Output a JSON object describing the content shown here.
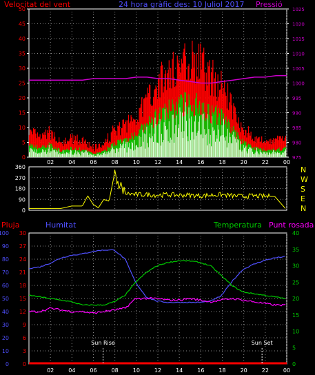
{
  "header": {
    "left_label": "Velocitat del vent",
    "center_label": "24 hora gràfic des: 10 Juliol 2017",
    "right_label": "Pressió"
  },
  "colors": {
    "wind": "#ff0000",
    "gust": "#ff0000",
    "wind_avg": "#00cc00",
    "wind_light": "#d8ffd8",
    "pressure": "#cc00cc",
    "direction": "#ffff00",
    "humidity": "#5050ff",
    "temperature": "#00cc00",
    "dewpoint": "#ff00ff",
    "rain": "#ff0000",
    "axis_left": "#ff0000",
    "axis_right": "#cc00cc",
    "grid": "#888888"
  },
  "x_tick_labels": [
    "02",
    "04",
    "06",
    "08",
    "10",
    "12",
    "14",
    "16",
    "18",
    "20",
    "22",
    "00"
  ],
  "chart_data": [
    {
      "type": "area",
      "id": "wind",
      "ylim_left": [
        0,
        50
      ],
      "yticks_left": [
        0,
        5,
        10,
        15,
        20,
        25,
        30,
        35,
        40,
        45,
        50
      ],
      "ylim_right": [
        975,
        1025
      ],
      "yticks_right": [
        975,
        980,
        985,
        990,
        995,
        1000,
        1005,
        1010,
        1015,
        1020,
        1025
      ],
      "x_hours": [
        0,
        1,
        2,
        3,
        4,
        5,
        6,
        7,
        8,
        9,
        10,
        11,
        12,
        13,
        14,
        15,
        16,
        17,
        18,
        19,
        20,
        21,
        22,
        23,
        24
      ],
      "series": [
        {
          "name": "Velocitat del vent",
          "values": [
            7,
            5,
            7,
            3,
            5,
            4,
            2,
            3,
            8,
            9,
            12,
            17,
            22,
            25,
            28,
            30,
            28,
            24,
            22,
            15,
            8,
            5,
            4,
            4,
            5
          ]
        },
        {
          "name": "Pressió",
          "values": [
            1001,
            1001,
            1001,
            1001,
            1001,
            1001,
            1001.5,
            1001.5,
            1001.5,
            1001.5,
            1002,
            1002,
            1001.5,
            1001.5,
            1001,
            1000.5,
            1000,
            1000,
            1000.5,
            1001,
            1001.5,
            1002,
            1002,
            1002.5,
            1002.5
          ]
        }
      ]
    },
    {
      "type": "scatter",
      "id": "direction",
      "ylim": [
        0,
        360
      ],
      "yticks": [
        0,
        90,
        180,
        270,
        360
      ],
      "right_labels": [
        "N",
        "W",
        "S",
        "E",
        "N"
      ],
      "x_hours": [
        0,
        1,
        2,
        3,
        4,
        5,
        5.5,
        6,
        6.5,
        7,
        7.5,
        8,
        8.5,
        9,
        10,
        11,
        12,
        13,
        14,
        15,
        16,
        17,
        18,
        19,
        20,
        21,
        22,
        23,
        24
      ],
      "values": [
        15,
        15,
        15,
        15,
        35,
        35,
        120,
        50,
        20,
        90,
        75,
        300,
        200,
        140,
        130,
        130,
        125,
        130,
        125,
        125,
        120,
        125,
        130,
        120,
        115,
        120,
        115,
        115,
        15
      ]
    },
    {
      "type": "line",
      "id": "climate",
      "left_axis_pluja": [
        0,
        3,
        6,
        9,
        12,
        15,
        18,
        21,
        24,
        27,
        30
      ],
      "left_axis_humitat": [
        0,
        10,
        20,
        30,
        40,
        50,
        60,
        70,
        80,
        90,
        100
      ],
      "right_axis_temp": [
        0,
        5,
        10,
        15,
        20,
        25,
        30,
        35,
        40
      ],
      "labels": {
        "rain": "Pluja",
        "humidity": "Humitat",
        "temperature": "Temperatura",
        "dewpoint": "Punt rosada",
        "sunrise": "Sun Rise",
        "sunset": "Sun Set"
      },
      "x_hours": [
        0,
        1,
        2,
        3,
        4,
        5,
        6,
        7,
        8,
        9,
        10,
        11,
        12,
        13,
        14,
        15,
        16,
        17,
        18,
        19,
        20,
        21,
        22,
        23,
        24
      ],
      "series": [
        {
          "name": "Humitat",
          "values": [
            73,
            74,
            77,
            81,
            83,
            84,
            86,
            87,
            87,
            80,
            62,
            51,
            48,
            47,
            47,
            47,
            47,
            48,
            52,
            63,
            72,
            76,
            79,
            81,
            82
          ]
        },
        {
          "name": "Temperatura",
          "values": [
            21,
            20.5,
            20,
            19.5,
            19,
            18,
            18,
            18,
            19,
            21,
            25,
            28,
            30,
            31,
            31.5,
            31.5,
            31,
            30,
            27,
            24,
            22,
            21.5,
            21,
            20.5,
            20
          ]
        },
        {
          "name": "Punt rosada",
          "values": [
            16,
            16,
            17,
            16.5,
            16,
            16,
            15.5,
            16,
            16.5,
            17,
            20,
            20,
            20,
            19.5,
            19.5,
            20,
            19.5,
            19,
            19.5,
            20,
            19.5,
            19,
            18.5,
            18,
            18
          ]
        },
        {
          "name": "Pluja",
          "values": [
            0,
            0,
            0,
            0,
            0,
            0,
            0,
            0,
            0,
            0,
            0,
            0,
            0,
            0,
            0,
            0,
            0,
            0,
            0,
            0,
            0,
            0,
            0,
            0,
            0
          ]
        }
      ],
      "sunrise_hour": 6.9,
      "sunset_hour": 21.7
    }
  ]
}
